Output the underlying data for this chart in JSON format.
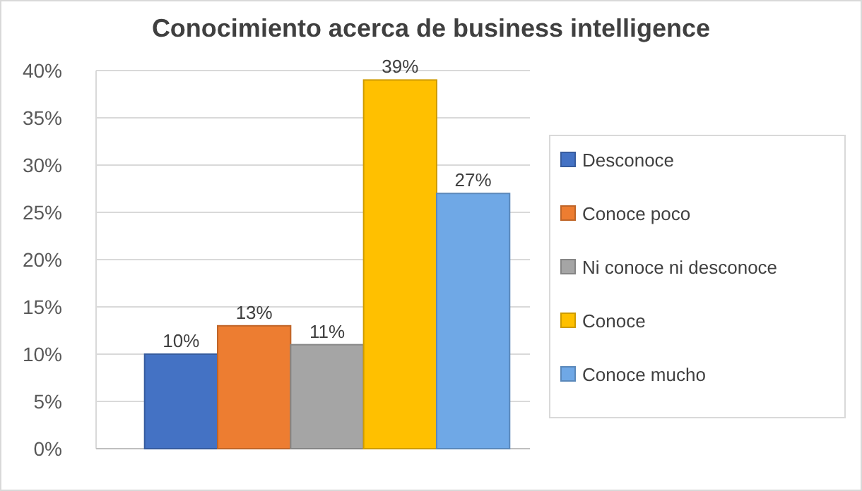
{
  "chart_data": {
    "type": "bar",
    "title": "Conocimiento acerca de business intelligence",
    "categories": [
      null
    ],
    "series": [
      {
        "name": "Desconoce",
        "color": "#4472c4",
        "values": [
          10
        ],
        "value_labels": [
          "10%"
        ]
      },
      {
        "name": "Conoce poco",
        "color": "#ed7d31",
        "values": [
          13
        ],
        "value_labels": [
          "13%"
        ]
      },
      {
        "name": "Ni conoce ni desconoce",
        "color": "#a5a5a5",
        "values": [
          11
        ],
        "value_labels": [
          "11%"
        ]
      },
      {
        "name": "Conoce",
        "color": "#ffc000",
        "values": [
          39
        ],
        "value_labels": [
          "39%"
        ]
      },
      {
        "name": "Conoce mucho",
        "color": "#6fa8e6",
        "values": [
          27
        ],
        "value_labels": [
          "27%"
        ]
      }
    ],
    "ylim": [
      0,
      40
    ],
    "yticks": [
      {
        "value": 0,
        "label": "0%"
      },
      {
        "value": 5,
        "label": "5%"
      },
      {
        "value": 10,
        "label": "10%"
      },
      {
        "value": 15,
        "label": "15%"
      },
      {
        "value": 20,
        "label": "20%"
      },
      {
        "value": 25,
        "label": "25%"
      },
      {
        "value": 30,
        "label": "30%"
      },
      {
        "value": 35,
        "label": "35%"
      },
      {
        "value": 40,
        "label": "40%"
      }
    ],
    "grid": "y",
    "legend": "right"
  }
}
